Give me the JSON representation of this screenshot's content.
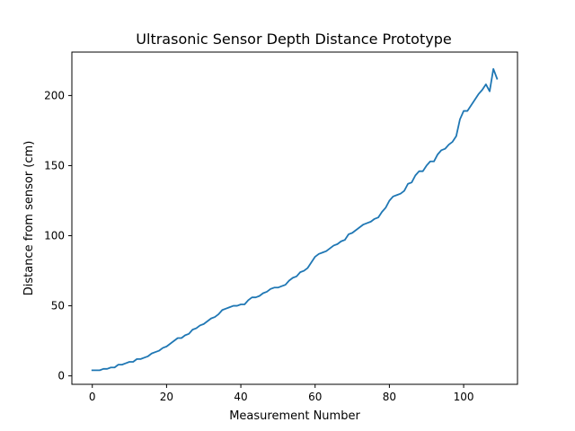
{
  "chart_data": {
    "type": "line",
    "title": "Ultrasonic Sensor Depth Distance Prototype",
    "xlabel": "Measurement Number",
    "ylabel": "Distance from sensor (cm)",
    "xlim": [
      -5.5,
      114.5
    ],
    "ylim": [
      -6,
      231
    ],
    "xticks": [
      0,
      20,
      40,
      60,
      80,
      100
    ],
    "yticks": [
      0,
      50,
      100,
      150,
      200
    ],
    "grid": false,
    "legend": "none",
    "series": [
      {
        "color": "#1f77b4",
        "x": [
          0,
          1,
          2,
          3,
          4,
          5,
          6,
          7,
          8,
          9,
          10,
          11,
          12,
          13,
          14,
          15,
          16,
          17,
          18,
          19,
          20,
          21,
          22,
          23,
          24,
          25,
          26,
          27,
          28,
          29,
          30,
          31,
          32,
          33,
          34,
          35,
          36,
          37,
          38,
          39,
          40,
          41,
          42,
          43,
          44,
          45,
          46,
          47,
          48,
          49,
          50,
          51,
          52,
          53,
          54,
          55,
          56,
          57,
          58,
          59,
          60,
          61,
          62,
          63,
          64,
          65,
          66,
          67,
          68,
          69,
          70,
          71,
          72,
          73,
          74,
          75,
          76,
          77,
          78,
          79,
          80,
          81,
          82,
          83,
          84,
          85,
          86,
          87,
          88,
          89,
          90,
          91,
          92,
          93,
          94,
          95,
          96,
          97,
          98,
          99,
          100,
          101,
          102,
          103,
          104,
          105,
          106,
          107,
          108,
          109
        ],
        "y": [
          4,
          4,
          4,
          5,
          5,
          6,
          6,
          8,
          8,
          9,
          10,
          10,
          12,
          12,
          13,
          14,
          16,
          17,
          18,
          20,
          21,
          23,
          25,
          27,
          27,
          29,
          30,
          33,
          34,
          36,
          37,
          39,
          41,
          42,
          44,
          47,
          48,
          49,
          50,
          50,
          51,
          51,
          54,
          56,
          56,
          57,
          59,
          60,
          62,
          63,
          63,
          64,
          65,
          68,
          70,
          71,
          74,
          75,
          77,
          81,
          85,
          87,
          88,
          89,
          91,
          93,
          94,
          96,
          97,
          101,
          102,
          104,
          106,
          108,
          109,
          110,
          112,
          113,
          117,
          120,
          125,
          128,
          129,
          130,
          132,
          137,
          138,
          143,
          146,
          146,
          150,
          153,
          153,
          158,
          161,
          162,
          165,
          167,
          171,
          183,
          189,
          189,
          193,
          197,
          201,
          204,
          208,
          203,
          219,
          212
        ]
      }
    ]
  }
}
